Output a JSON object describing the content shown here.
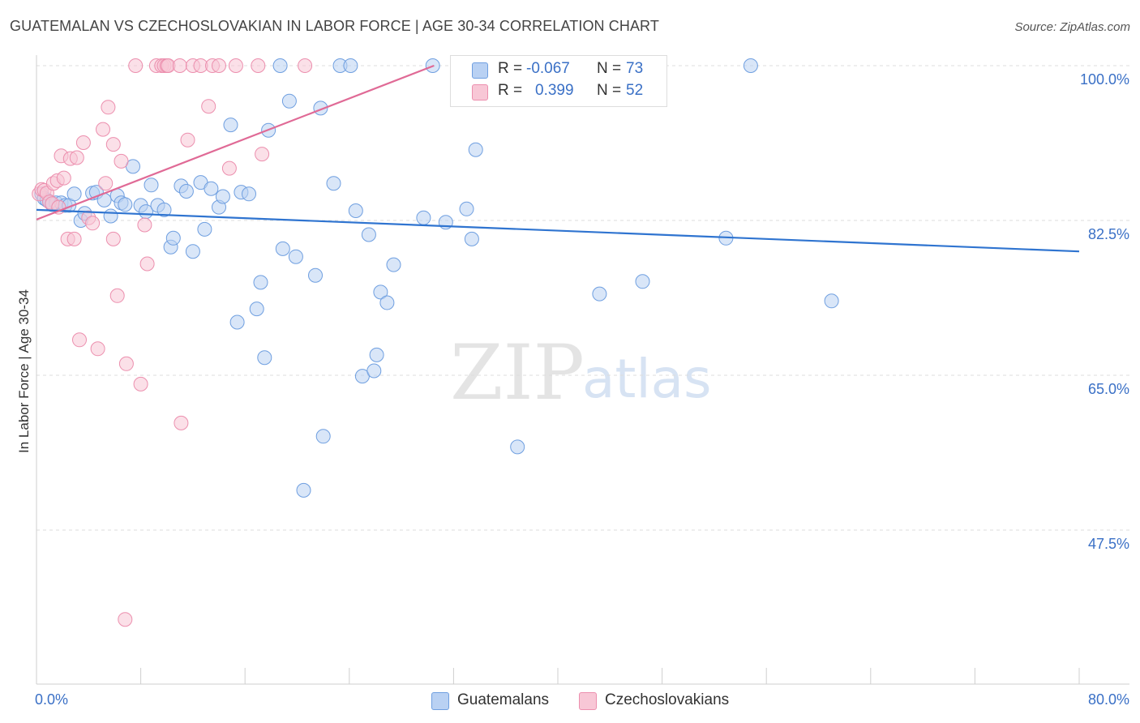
{
  "title": "GUATEMALAN VS CZECHOSLOVAKIAN IN LABOR FORCE | AGE 30-34 CORRELATION CHART",
  "source": "Source: ZipAtlas.com",
  "watermark": {
    "zip": "ZIP",
    "atlas": "atlas"
  },
  "legend_top": [
    {
      "r_label": "R =",
      "r_value": "-0.067",
      "n_label": "N =",
      "n_value": "73",
      "fill": "#b9d1f3",
      "stroke": "#6f9fe0"
    },
    {
      "r_label": "R =",
      "r_value": "0.399",
      "n_label": "N =",
      "n_value": "52",
      "fill": "#f8c7d6",
      "stroke": "#ec8fae"
    }
  ],
  "chart_data": {
    "type": "scatter",
    "title": "GUATEMALAN VS CZECHOSLOVAKIAN IN LABOR FORCE | AGE 30-34 CORRELATION CHART",
    "xlabel": "",
    "ylabel": "In Labor Force | Age 30-34",
    "xlim": [
      0,
      80
    ],
    "ylim": [
      30,
      101.5
    ],
    "x_tick_labels": [
      {
        "value": 0,
        "label": "0.0%"
      },
      {
        "value": 80,
        "label": "80.0%"
      }
    ],
    "y_tick_labels": [
      {
        "value": 100,
        "label": "100.0%"
      },
      {
        "value": 82.5,
        "label": "82.5%"
      },
      {
        "value": 65,
        "label": "65.0%"
      },
      {
        "value": 47.5,
        "label": "47.5%"
      }
    ],
    "grid": "horizontal dashed",
    "legend_position": "bottom-center",
    "series": [
      {
        "name": "Guatemalans",
        "color": "#6f9fe0",
        "fill": "#b9d1f3",
        "trend": {
          "x": [
            0,
            80
          ],
          "y": [
            83.7,
            79.0
          ],
          "color": "#2f74d0"
        },
        "points": [
          [
            0.4,
            85.5
          ],
          [
            0.6,
            85.0
          ],
          [
            0.8,
            84.8
          ],
          [
            1.0,
            84.6
          ],
          [
            1.2,
            84.3
          ],
          [
            1.5,
            84.5
          ],
          [
            1.9,
            84.5
          ],
          [
            2.2,
            84.2
          ],
          [
            2.5,
            84.2
          ],
          [
            2.9,
            85.5
          ],
          [
            3.4,
            82.5
          ],
          [
            3.7,
            83.3
          ],
          [
            4.3,
            85.6
          ],
          [
            4.6,
            85.7
          ],
          [
            5.2,
            84.8
          ],
          [
            5.7,
            83.0
          ],
          [
            6.2,
            85.3
          ],
          [
            6.5,
            84.5
          ],
          [
            6.8,
            84.3
          ],
          [
            7.4,
            88.6
          ],
          [
            8.0,
            84.2
          ],
          [
            8.4,
            83.5
          ],
          [
            8.8,
            86.5
          ],
          [
            9.3,
            84.2
          ],
          [
            9.8,
            83.7
          ],
          [
            10.3,
            79.5
          ],
          [
            10.5,
            80.5
          ],
          [
            11.1,
            86.4
          ],
          [
            11.5,
            85.8
          ],
          [
            12.0,
            79.0
          ],
          [
            12.6,
            86.8
          ],
          [
            12.9,
            81.5
          ],
          [
            13.4,
            86.1
          ],
          [
            14.0,
            84.0
          ],
          [
            14.3,
            85.2
          ],
          [
            14.9,
            93.3
          ],
          [
            15.4,
            71.0
          ],
          [
            15.7,
            85.7
          ],
          [
            16.3,
            85.5
          ],
          [
            16.9,
            72.5
          ],
          [
            17.2,
            75.5
          ],
          [
            17.5,
            67.0
          ],
          [
            17.8,
            92.7
          ],
          [
            18.7,
            100.0
          ],
          [
            18.9,
            79.3
          ],
          [
            19.4,
            96.0
          ],
          [
            19.9,
            78.4
          ],
          [
            20.5,
            52.0
          ],
          [
            21.4,
            76.3
          ],
          [
            21.8,
            95.2
          ],
          [
            22.0,
            58.1
          ],
          [
            22.8,
            86.7
          ],
          [
            23.3,
            100.0
          ],
          [
            24.1,
            100.0
          ],
          [
            24.5,
            83.6
          ],
          [
            25.0,
            64.9
          ],
          [
            25.5,
            80.9
          ],
          [
            25.9,
            65.5
          ],
          [
            26.1,
            67.3
          ],
          [
            26.4,
            74.4
          ],
          [
            26.9,
            73.2
          ],
          [
            27.4,
            77.5
          ],
          [
            29.7,
            82.8
          ],
          [
            30.4,
            100.0
          ],
          [
            31.4,
            82.3
          ],
          [
            33.0,
            83.8
          ],
          [
            33.4,
            80.4
          ],
          [
            33.7,
            90.5
          ],
          [
            36.9,
            56.9
          ],
          [
            43.2,
            74.2
          ],
          [
            46.5,
            75.6
          ],
          [
            52.9,
            80.5
          ],
          [
            54.8,
            100.0
          ],
          [
            61.0,
            73.4
          ]
        ]
      },
      {
        "name": "Czechoslovakians",
        "color": "#ec8fae",
        "fill": "#f8c7d6",
        "trend": {
          "x": [
            0,
            30.5
          ],
          "y": [
            82.6,
            100.0
          ],
          "color": "#e06a96"
        },
        "points": [
          [
            0.2,
            85.5
          ],
          [
            0.4,
            86.0
          ],
          [
            0.6,
            85.9
          ],
          [
            0.8,
            85.6
          ],
          [
            1.0,
            84.6
          ],
          [
            1.2,
            84.4
          ],
          [
            1.3,
            86.7
          ],
          [
            1.6,
            87.0
          ],
          [
            1.7,
            84.0
          ],
          [
            1.9,
            89.8
          ],
          [
            2.1,
            87.3
          ],
          [
            2.4,
            80.4
          ],
          [
            2.6,
            89.5
          ],
          [
            2.9,
            80.4
          ],
          [
            3.1,
            89.6
          ],
          [
            3.3,
            69.0
          ],
          [
            3.6,
            91.3
          ],
          [
            4.0,
            82.8
          ],
          [
            4.3,
            82.2
          ],
          [
            4.7,
            68.0
          ],
          [
            5.1,
            92.8
          ],
          [
            5.3,
            86.7
          ],
          [
            5.5,
            95.3
          ],
          [
            5.9,
            91.1
          ],
          [
            5.9,
            80.4
          ],
          [
            6.2,
            74.0
          ],
          [
            6.5,
            89.2
          ],
          [
            6.8,
            37.4
          ],
          [
            6.9,
            66.3
          ],
          [
            7.6,
            100.0
          ],
          [
            8.0,
            64.0
          ],
          [
            8.3,
            82.0
          ],
          [
            8.5,
            77.6
          ],
          [
            9.2,
            100.0
          ],
          [
            9.6,
            100.0
          ],
          [
            9.8,
            100.0
          ],
          [
            10.0,
            100.0
          ],
          [
            10.1,
            100.0
          ],
          [
            11.0,
            100.0
          ],
          [
            11.1,
            59.6
          ],
          [
            11.6,
            91.6
          ],
          [
            12.0,
            100.0
          ],
          [
            12.6,
            100.0
          ],
          [
            13.2,
            95.4
          ],
          [
            13.5,
            100.0
          ],
          [
            14.0,
            100.0
          ],
          [
            14.8,
            88.4
          ],
          [
            15.3,
            100.0
          ],
          [
            17.0,
            100.0
          ],
          [
            17.3,
            90.0
          ],
          [
            20.6,
            100.0
          ],
          [
            32.6,
            100.0
          ]
        ]
      }
    ]
  }
}
